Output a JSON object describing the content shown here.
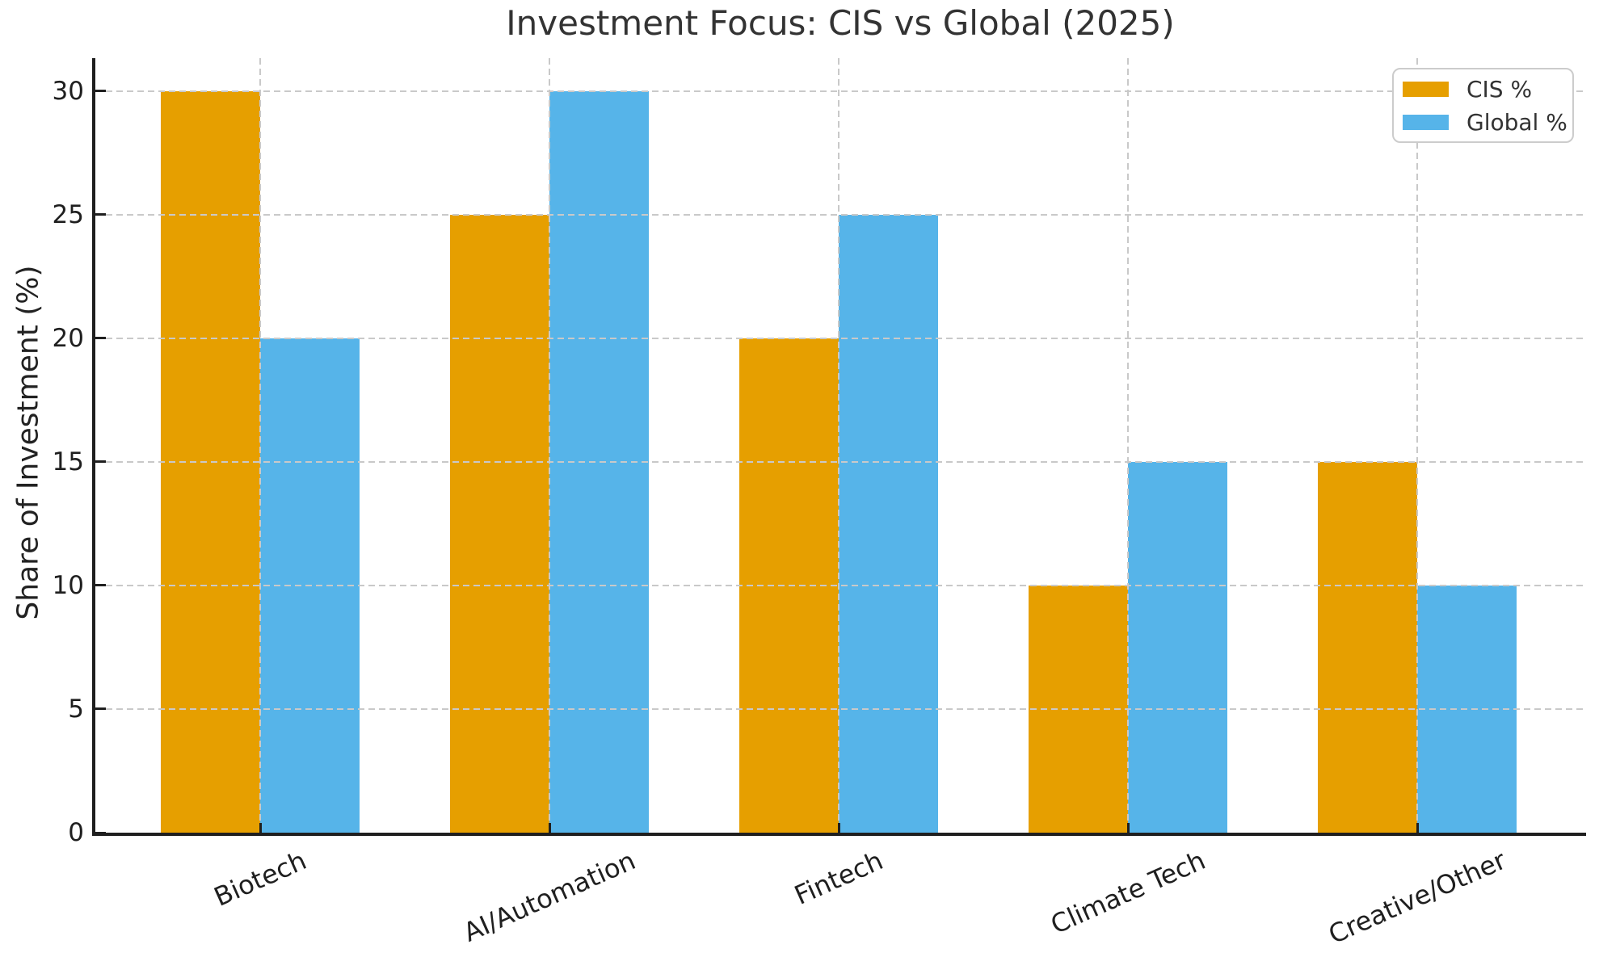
{
  "chart_data": {
    "type": "bar",
    "title": "Investment Focus: CIS vs Global (2025)",
    "xlabel": "",
    "ylabel": "Share of Investment (%)",
    "categories": [
      "Biotech",
      "AI/Automation",
      "Fintech",
      "Climate Tech",
      "Creative/Other"
    ],
    "series": [
      {
        "name": "CIS %",
        "color": "#E69F00",
        "values": [
          30,
          25,
          20,
          10,
          15
        ]
      },
      {
        "name": "Global %",
        "color": "#56B4E9",
        "values": [
          20,
          30,
          25,
          15,
          10
        ]
      }
    ],
    "yticks": [
      0,
      5,
      10,
      15,
      20,
      25,
      30
    ],
    "ytick_labels": [
      "0",
      "5",
      "10",
      "15",
      "20",
      "25",
      "30"
    ],
    "ylim": [
      0,
      31.4
    ],
    "grid": "both, dashed, drawn over bars",
    "legend_position": "upper right",
    "xtick_rotation_deg": 24
  },
  "style": {
    "cis_color": "#E69F00",
    "global_color": "#56B4E9",
    "grid_color": "#c9c9c9",
    "spine_color": "#1f1f1f",
    "text_color": "#333333",
    "background": "#ffffff"
  }
}
